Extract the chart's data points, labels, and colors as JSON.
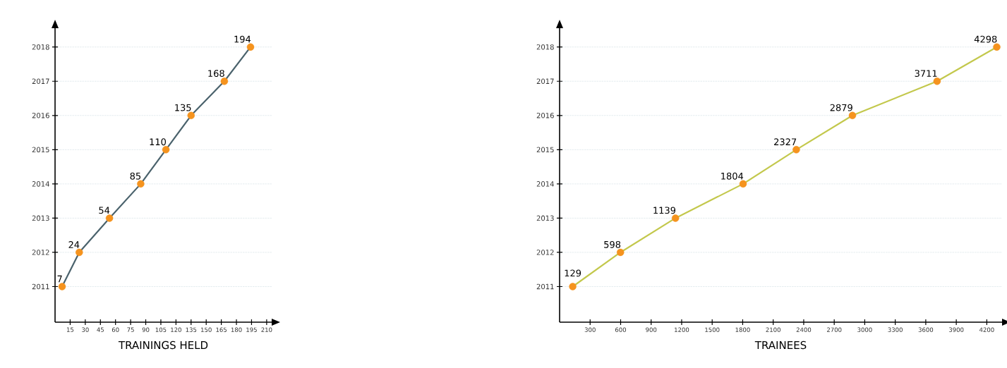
{
  "chart_data": [
    {
      "type": "line",
      "orientation": "horizontal",
      "xlabel": "TRAININGS HELD",
      "xlim": [
        0,
        215
      ],
      "xticks": [
        15,
        30,
        45,
        60,
        75,
        90,
        105,
        120,
        135,
        150,
        165,
        180,
        195,
        210
      ],
      "categories": [
        "2018",
        "2017",
        "2016",
        "2015",
        "2014",
        "2013",
        "2012",
        "2011"
      ],
      "grid": "y",
      "marker": "circle",
      "line_style": "solid",
      "data_labels": true,
      "series": [
        {
          "color": "#4a626c",
          "colors": [
            "#f5931e",
            "#f5931e",
            "#f5931e",
            "#f5931e",
            "#f5931e",
            "#f5931e",
            "#f5931e",
            "#f5931e"
          ],
          "values": [
            194,
            168,
            135,
            110,
            85,
            54,
            24,
            7
          ]
        }
      ]
    },
    {
      "type": "line",
      "orientation": "horizontal",
      "xlabel": "TRAINEES",
      "xlim": [
        0,
        4350
      ],
      "xticks": [
        300,
        600,
        900,
        1200,
        1500,
        1800,
        2100,
        2400,
        2700,
        3000,
        3300,
        3600,
        3900,
        4200
      ],
      "categories": [
        "2018",
        "2017",
        "2016",
        "2015",
        "2014",
        "2013",
        "2012",
        "2011"
      ],
      "grid": "y",
      "marker": "circle",
      "line_style": "solid",
      "data_labels": true,
      "series": [
        {
          "color": "#c3c84c",
          "colors": [
            "#f5931e",
            "#f5931e",
            "#f5931e",
            "#f5931e",
            "#f5931e",
            "#f5931e",
            "#f5931e",
            "#f5931e"
          ],
          "values": [
            4298,
            3711,
            2879,
            2327,
            1804,
            1139,
            598,
            129
          ]
        }
      ]
    }
  ]
}
